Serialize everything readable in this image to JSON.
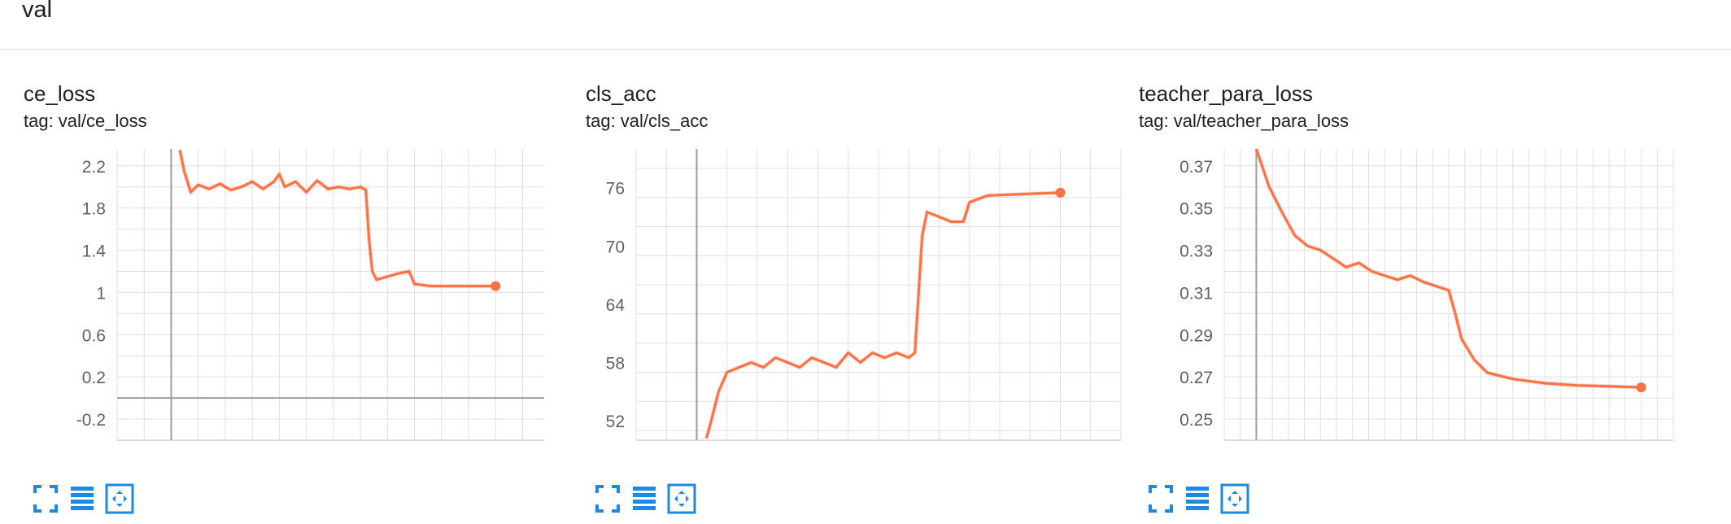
{
  "section": {
    "title": "val"
  },
  "colors": {
    "line": "#ff7043",
    "line_raw": "#ff7043",
    "grid": "#e0e0e0",
    "axis": "#757575",
    "toolbar": "#1e88e5"
  },
  "toolbar_icons": [
    "fullscreen-icon",
    "data-table-icon",
    "fit-domain-icon"
  ],
  "cards": [
    {
      "title": "ce_loss",
      "tag": "tag: val/ce_loss"
    },
    {
      "title": "cls_acc",
      "tag": "tag: val/cls_acc"
    },
    {
      "title": "teacher_para_loss",
      "tag": "tag: val/teacher_para_loss"
    }
  ],
  "chart_data": [
    {
      "type": "line",
      "title": "ce_loss",
      "subtitle": "tag: val/ce_loss",
      "xlim": [
        -50,
        345
      ],
      "ylim": [
        -0.4,
        2.36
      ],
      "xticks": [
        0,
        50,
        100,
        150,
        200,
        250,
        300
      ],
      "yticks": [
        -0.2,
        0.2,
        0.6,
        1,
        1.4,
        1.8,
        2.2
      ],
      "ytick_labels": [
        "-0.2",
        "0.2",
        "0.6",
        "1",
        "1.4",
        "1.8",
        "2.2"
      ],
      "series": [
        {
          "points": [
            [
              8,
              2.35
            ],
            [
              12,
              2.15
            ],
            [
              18,
              1.95
            ],
            [
              25,
              2.02
            ],
            [
              35,
              1.98
            ],
            [
              45,
              2.03
            ],
            [
              55,
              1.97
            ],
            [
              65,
              2.0
            ],
            [
              75,
              2.05
            ],
            [
              85,
              1.98
            ],
            [
              95,
              2.05
            ],
            [
              100,
              2.12
            ],
            [
              105,
              2.0
            ],
            [
              115,
              2.05
            ],
            [
              125,
              1.95
            ],
            [
              135,
              2.06
            ],
            [
              145,
              1.98
            ],
            [
              155,
              2.0
            ],
            [
              165,
              1.98
            ],
            [
              175,
              2.0
            ],
            [
              180,
              1.97
            ],
            [
              183,
              1.5
            ],
            [
              186,
              1.2
            ],
            [
              190,
              1.12
            ],
            [
              200,
              1.15
            ],
            [
              210,
              1.18
            ],
            [
              220,
              1.2
            ],
            [
              225,
              1.08
            ],
            [
              240,
              1.06
            ],
            [
              260,
              1.06
            ],
            [
              280,
              1.06
            ],
            [
              300,
              1.06
            ]
          ]
        }
      ],
      "grid": true
    },
    {
      "type": "line",
      "title": "cls_acc",
      "subtitle": "tag: val/cls_acc",
      "xlim": [
        -50,
        350
      ],
      "ylim": [
        50,
        80
      ],
      "xticks": [
        0,
        50,
        100,
        150,
        200,
        250,
        300
      ],
      "yticks": [
        52,
        58,
        64,
        70,
        76
      ],
      "ytick_labels": [
        "52",
        "58",
        "64",
        "70",
        "76"
      ],
      "series": [
        {
          "points": [
            [
              8,
              50.2
            ],
            [
              12,
              52
            ],
            [
              18,
              55
            ],
            [
              25,
              57
            ],
            [
              35,
              57.5
            ],
            [
              45,
              58
            ],
            [
              55,
              57.5
            ],
            [
              65,
              58.5
            ],
            [
              75,
              58
            ],
            [
              85,
              57.5
            ],
            [
              95,
              58.5
            ],
            [
              105,
              58
            ],
            [
              115,
              57.5
            ],
            [
              125,
              59
            ],
            [
              135,
              58
            ],
            [
              145,
              59
            ],
            [
              155,
              58.5
            ],
            [
              165,
              59
            ],
            [
              175,
              58.5
            ],
            [
              180,
              59
            ],
            [
              183,
              65
            ],
            [
              186,
              71
            ],
            [
              190,
              73.5
            ],
            [
              200,
              73
            ],
            [
              210,
              72.5
            ],
            [
              220,
              72.5
            ],
            [
              225,
              74.5
            ],
            [
              240,
              75.2
            ],
            [
              260,
              75.3
            ],
            [
              280,
              75.4
            ],
            [
              300,
              75.5
            ]
          ]
        }
      ],
      "grid": true
    },
    {
      "type": "line",
      "title": "teacher_para_loss",
      "subtitle": "tag: val/teacher_para_loss",
      "xlim": [
        -5,
        65
      ],
      "ylim": [
        0.24,
        0.378
      ],
      "xticks": [
        0,
        5,
        10,
        15,
        20,
        25,
        30,
        35,
        40,
        45,
        50,
        55,
        60
      ],
      "yticks": [
        0.25,
        0.27,
        0.29,
        0.31,
        0.33,
        0.35,
        0.37
      ],
      "ytick_labels": [
        "0.25",
        "0.27",
        "0.29",
        "0.31",
        "0.33",
        "0.35",
        "0.37"
      ],
      "series": [
        {
          "points": [
            [
              0,
              0.378
            ],
            [
              2,
              0.36
            ],
            [
              4,
              0.348
            ],
            [
              6,
              0.337
            ],
            [
              8,
              0.332
            ],
            [
              10,
              0.33
            ],
            [
              12,
              0.326
            ],
            [
              14,
              0.322
            ],
            [
              16,
              0.324
            ],
            [
              18,
              0.32
            ],
            [
              20,
              0.318
            ],
            [
              22,
              0.316
            ],
            [
              24,
              0.318
            ],
            [
              26,
              0.315
            ],
            [
              28,
              0.313
            ],
            [
              30,
              0.311
            ],
            [
              31,
              0.3
            ],
            [
              32,
              0.288
            ],
            [
              34,
              0.278
            ],
            [
              36,
              0.272
            ],
            [
              40,
              0.269
            ],
            [
              45,
              0.267
            ],
            [
              50,
              0.266
            ],
            [
              55,
              0.2655
            ],
            [
              60,
              0.265
            ]
          ]
        }
      ],
      "grid": true
    }
  ]
}
